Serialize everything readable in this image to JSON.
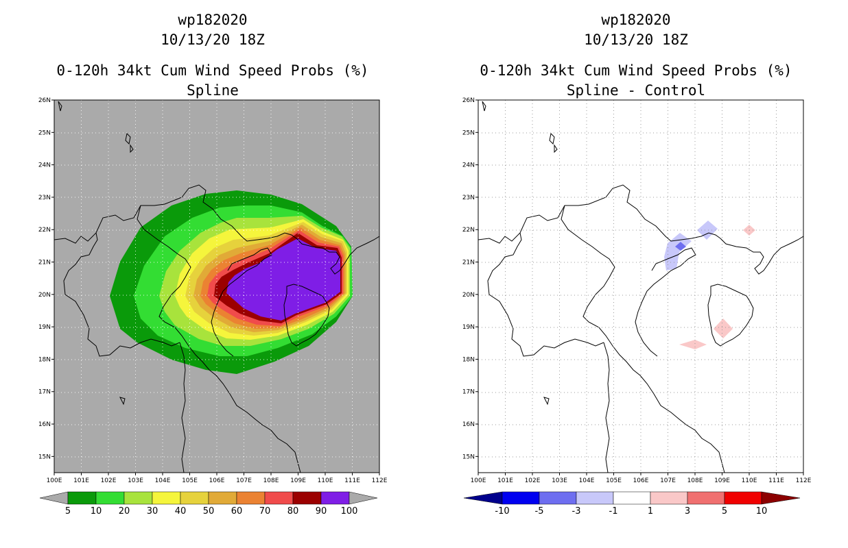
{
  "left": {
    "title_line1": "wp182020",
    "title_line2": "10/13/20 18Z",
    "title_line3": "0-120h 34kt Cum Wind Speed Probs (%)",
    "title_line4": "Spline",
    "colorbar": {
      "labels": [
        "5",
        "10",
        "20",
        "30",
        "40",
        "50",
        "60",
        "70",
        "80",
        "90",
        "100"
      ],
      "colors": [
        "#aaaaaa",
        "#0a9a0a",
        "#33dd33",
        "#a8e33c",
        "#f5f53c",
        "#e6d23c",
        "#e1aa37",
        "#eb8232",
        "#f04b4b",
        "#9b0000",
        "#7f1ee6",
        "#aaaaaa"
      ]
    }
  },
  "right": {
    "title_line1": "wp182020",
    "title_line2": "10/13/20 18Z",
    "title_line3": "0-120h 34kt Cum Wind Speed Probs (%)",
    "title_line4": "Spline - Control",
    "colorbar": {
      "labels": [
        "-10",
        "-5",
        "-3",
        "-1",
        "1",
        "3",
        "5",
        "10"
      ],
      "colors": [
        "#00008c",
        "#0000f0",
        "#6e6ef0",
        "#c8c8fa",
        "#ffffff",
        "#fac8c8",
        "#f07070",
        "#f00000",
        "#8c0000"
      ]
    }
  },
  "axes": {
    "x_ticks": [
      "100E",
      "101E",
      "102E",
      "103E",
      "104E",
      "105E",
      "106E",
      "107E",
      "108E",
      "109E",
      "110E",
      "111E",
      "112E"
    ],
    "y_ticks": [
      "15N",
      "16N",
      "17N",
      "18N",
      "19N",
      "20N",
      "21N",
      "22N",
      "23N",
      "24N",
      "25N",
      "26N"
    ]
  },
  "map_data": {
    "lon_range": [
      100,
      112
    ],
    "lat_range": [
      14.5,
      26
    ],
    "left_fill_levels": [
      {
        "level": 5,
        "color": "#0a9a0a"
      },
      {
        "level": 10,
        "color": "#33dd33"
      },
      {
        "level": 20,
        "color": "#a8e33c"
      },
      {
        "level": 30,
        "color": "#f5f53c"
      },
      {
        "level": 40,
        "color": "#e6d23c"
      },
      {
        "level": 50,
        "color": "#e1aa37"
      },
      {
        "level": 60,
        "color": "#eb8232"
      },
      {
        "level": 70,
        "color": "#f04b4b"
      },
      {
        "level": 80,
        "color": "#9b0000"
      },
      {
        "level": 90,
        "color": "#7f1ee6"
      }
    ],
    "right_diff_patches": [
      {
        "lon": 107.4,
        "lat": 21.4,
        "sign": "negative",
        "magnitude": "3"
      },
      {
        "lon": 107.6,
        "lat": 21.6,
        "sign": "negative",
        "magnitude": "5"
      },
      {
        "lon": 108.5,
        "lat": 21.9,
        "sign": "negative",
        "magnitude": "3"
      },
      {
        "lon": 109.0,
        "lat": 19.0,
        "sign": "positive",
        "magnitude": "3"
      },
      {
        "lon": 108.0,
        "lat": 18.5,
        "sign": "positive",
        "magnitude": "3"
      },
      {
        "lon": 110.0,
        "lat": 22.0,
        "sign": "positive",
        "magnitude": "3"
      }
    ]
  }
}
